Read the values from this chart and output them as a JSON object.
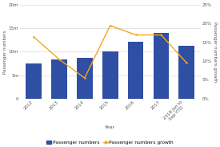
{
  "categories": [
    "2012",
    "2013",
    "2014",
    "2015",
    "2016",
    "2017",
    "2018 Jan to\nSep YTD"
  ],
  "bar_values": [
    7500000,
    8300000,
    8700000,
    10000000,
    12200000,
    14000000,
    11300000
  ],
  "line_values": [
    16.5,
    10.5,
    5.5,
    19.5,
    17.0,
    17.0,
    9.5
  ],
  "bar_color": "#2e4fa3",
  "line_color": "#f5a623",
  "ylabel_left": "Passenger numbers",
  "ylabel_right": "Passenger numbers growth",
  "xlabel": "Year",
  "ylim_left": [
    0,
    20000000
  ],
  "ylim_right": [
    0,
    25
  ],
  "yticks_left": [
    0,
    5000000,
    10000000,
    15000000,
    20000000
  ],
  "yticks_right": [
    0,
    5,
    10,
    15,
    20,
    25
  ],
  "ytick_labels_left": [
    "0",
    "5m",
    "10m",
    "15m",
    "20m"
  ],
  "ytick_labels_right": [
    "0%",
    "5%",
    "10%",
    "15%",
    "20%",
    "25%"
  ],
  "legend_bar_label": "Passenger numbers",
  "legend_line_label": "Passenger numbers growth",
  "background_color": "#ffffff",
  "grid_color": "#d0d0d0",
  "axis_fontsize": 4.0,
  "tick_fontsize": 4.0,
  "legend_fontsize": 4.2
}
